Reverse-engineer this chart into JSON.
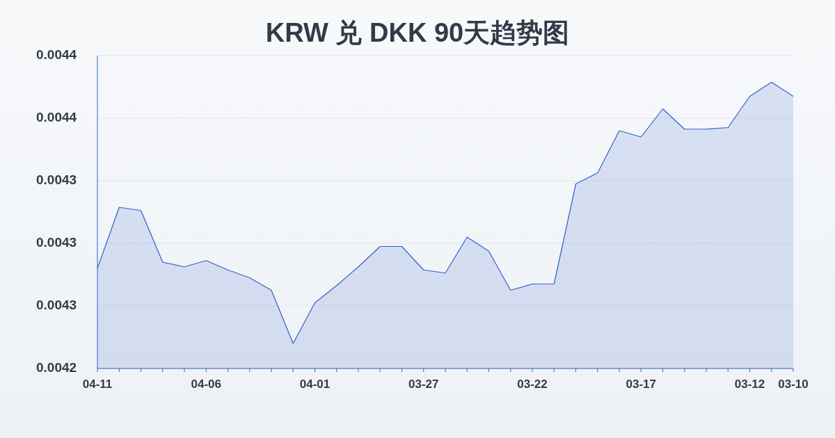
{
  "chart_data": {
    "type": "area",
    "title": "KRW 兑 DKK 90天趋势图",
    "categories": [
      "04-11",
      null,
      null,
      null,
      null,
      "04-06",
      null,
      null,
      null,
      null,
      "04-01",
      null,
      null,
      null,
      null,
      "03-27",
      null,
      null,
      null,
      null,
      "03-22",
      null,
      null,
      null,
      null,
      "03-17",
      null,
      null,
      null,
      null,
      "03-12",
      null,
      "03-10"
    ],
    "values": [
      0.004284,
      0.004323,
      0.004321,
      0.004288,
      0.004285,
      0.004289,
      0.004283,
      0.004278,
      0.00427,
      0.004236,
      0.004262,
      0.004273,
      0.004285,
      0.004298,
      0.004298,
      0.004283,
      0.004281,
      0.004304,
      0.004295,
      0.00427,
      0.004274,
      0.004274,
      0.004338,
      0.004345,
      0.004372,
      0.004368,
      0.004386,
      0.004373,
      0.004373,
      0.004374,
      0.004394,
      0.004403,
      0.004394
    ],
    "color": "#3060c8",
    "ylim": [
      0.00422,
      0.00442
    ],
    "yticks": [
      {
        "value": 0.00422,
        "label": "0.0042"
      },
      {
        "value": 0.00426,
        "label": "0.0043"
      },
      {
        "value": 0.0043,
        "label": "0.0043"
      },
      {
        "value": 0.00434,
        "label": "0.0043"
      },
      {
        "value": 0.00438,
        "label": "0.0044"
      },
      {
        "value": 0.00442,
        "label": "0.0044"
      }
    ],
    "grid": "y"
  }
}
